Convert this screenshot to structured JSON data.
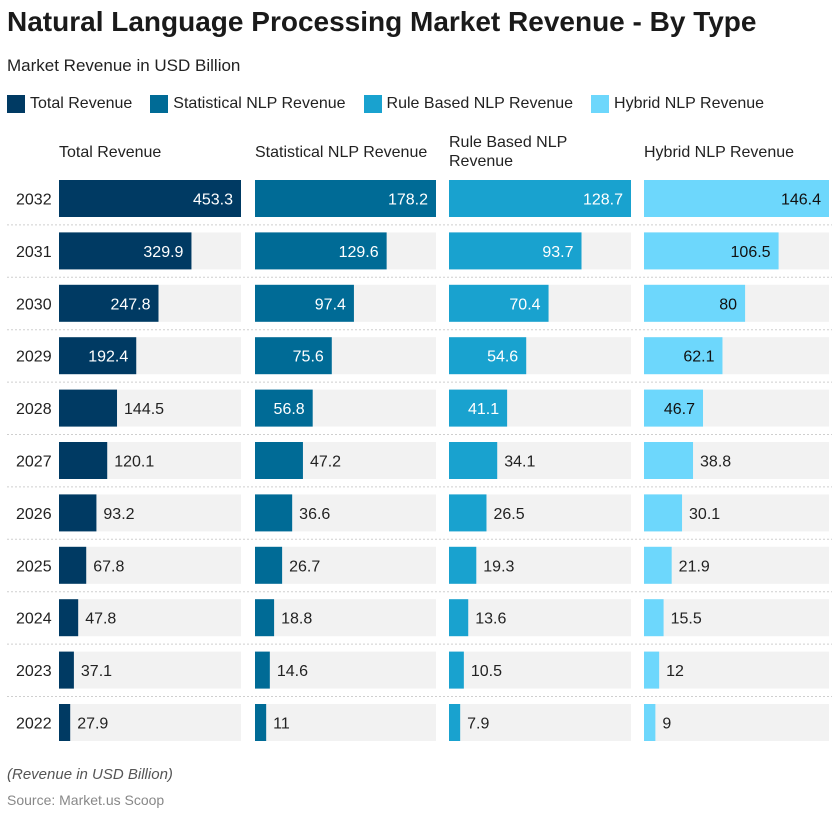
{
  "title": "Natural Language Processing Market Revenue - By Type",
  "subtitle": "Market Revenue in USD Billion",
  "footnote": "(Revenue in USD Billion)",
  "source": "Source: Market.us Scoop",
  "chart_data": {
    "type": "bar",
    "orientation": "horizontal",
    "layout": "small-multiples",
    "categories": [
      "2032",
      "2031",
      "2030",
      "2029",
      "2028",
      "2027",
      "2026",
      "2025",
      "2024",
      "2023",
      "2022"
    ],
    "series": [
      {
        "name": "Total Revenue",
        "color": "#003a63",
        "max": 453.3,
        "values": [
          453.3,
          329.9,
          247.8,
          192.4,
          144.5,
          120.1,
          93.2,
          67.8,
          47.8,
          37.1,
          27.9
        ]
      },
      {
        "name": "Statistical NLP Revenue",
        "color": "#006b96",
        "max": 178.2,
        "values": [
          178.2,
          129.6,
          97.4,
          75.6,
          56.8,
          47.2,
          36.6,
          26.7,
          18.8,
          14.6,
          11
        ]
      },
      {
        "name": "Rule Based NLP Revenue",
        "color": "#19a2cf",
        "max": 128.7,
        "values": [
          128.7,
          93.7,
          70.4,
          54.6,
          41.1,
          34.1,
          26.5,
          19.3,
          13.6,
          10.5,
          7.9
        ]
      },
      {
        "name": "Hybrid NLP Revenue",
        "color": "#6dd7fc",
        "max": 146.4,
        "values": [
          146.4,
          106.5,
          80,
          62.1,
          46.7,
          38.8,
          30.1,
          21.9,
          15.5,
          12,
          9
        ]
      }
    ],
    "panel_headers": [
      "Total Revenue",
      "Statistical NLP Revenue",
      "Rule Based NLP\nRevenue",
      "Hybrid NLP Revenue"
    ],
    "legend_position": "top-left",
    "grid": false
  }
}
